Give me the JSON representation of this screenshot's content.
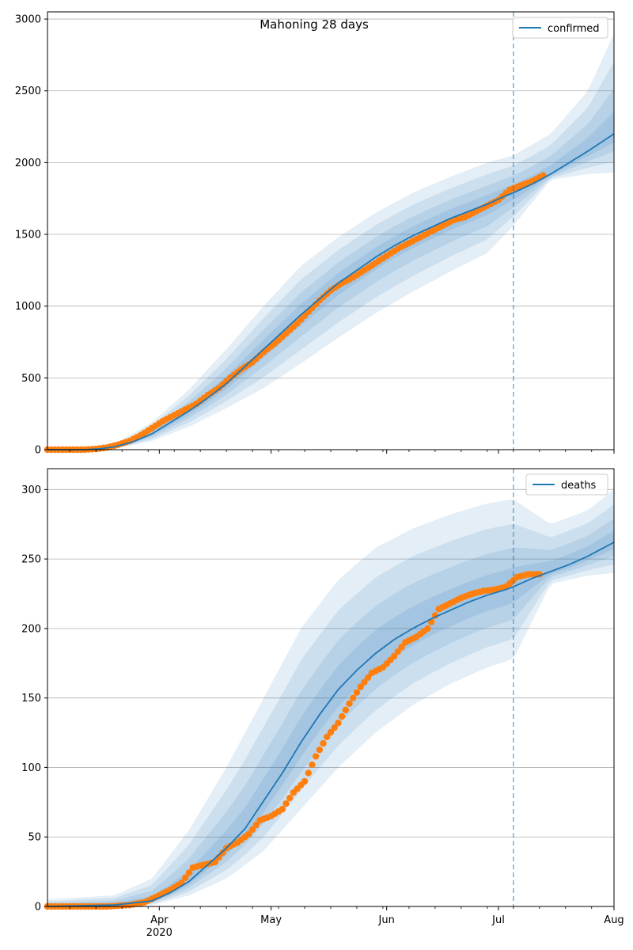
{
  "figure": {
    "title": "Mahoning 28 days"
  },
  "chart_data": [
    {
      "type": "line",
      "title": "Mahoning 28 days",
      "xlabel": "",
      "ylabel": "",
      "grid": "horizontal",
      "legend_placement": "top-right",
      "x_range": [
        "2020-03-02",
        "2020-08-01"
      ],
      "ylim": [
        0,
        3050
      ],
      "yticks": [
        0,
        500,
        1000,
        1500,
        2000,
        2500,
        3000
      ],
      "xticks": [
        {
          "date": "2020-04-01",
          "label": "Apr"
        },
        {
          "date": "2020-05-01",
          "label": "May"
        },
        {
          "date": "2020-06-01",
          "label": "Jun"
        },
        {
          "date": "2020-07-01",
          "label": "Jul"
        },
        {
          "date": "2020-08-01",
          "label": "Aug"
        }
      ],
      "year_label": "2020",
      "forecast_start": "2020-07-05",
      "series": [
        {
          "name": "confirmed",
          "kind": "model-line",
          "color": "#1f77b4",
          "points": [
            [
              "2020-03-02",
              0
            ],
            [
              "2020-03-12",
              0
            ],
            [
              "2020-03-16",
              6
            ],
            [
              "2020-03-20",
              20
            ],
            [
              "2020-03-25",
              55
            ],
            [
              "2020-03-30",
              110
            ],
            [
              "2020-04-04",
              190
            ],
            [
              "2020-04-09",
              270
            ],
            [
              "2020-04-14",
              360
            ],
            [
              "2020-04-19",
              460
            ],
            [
              "2020-04-24",
              580
            ],
            [
              "2020-04-29",
              700
            ],
            [
              "2020-05-04",
              820
            ],
            [
              "2020-05-09",
              940
            ],
            [
              "2020-05-14",
              1050
            ],
            [
              "2020-05-19",
              1160
            ],
            [
              "2020-05-24",
              1250
            ],
            [
              "2020-05-29",
              1340
            ],
            [
              "2020-06-03",
              1420
            ],
            [
              "2020-06-08",
              1490
            ],
            [
              "2020-06-13",
              1550
            ],
            [
              "2020-06-18",
              1610
            ],
            [
              "2020-06-23",
              1660
            ],
            [
              "2020-06-28",
              1710
            ],
            [
              "2020-07-03",
              1770
            ],
            [
              "2020-07-05",
              1790
            ],
            [
              "2020-07-10",
              1850
            ],
            [
              "2020-07-15",
              1920
            ],
            [
              "2020-07-20",
              2000
            ],
            [
              "2020-07-25",
              2080
            ],
            [
              "2020-08-01",
              2200
            ]
          ]
        },
        {
          "name": "confirmed (observed)",
          "kind": "observed-dots",
          "color": "#ff7f0e",
          "points": [
            [
              "2020-03-02",
              0
            ],
            [
              "2020-03-07",
              0
            ],
            [
              "2020-03-12",
              0
            ],
            [
              "2020-03-15",
              5
            ],
            [
              "2020-03-18",
              15
            ],
            [
              "2020-03-21",
              35
            ],
            [
              "2020-03-24",
              60
            ],
            [
              "2020-03-27",
              100
            ],
            [
              "2020-03-30",
              150
            ],
            [
              "2020-04-02",
              200
            ],
            [
              "2020-04-05",
              240
            ],
            [
              "2020-04-08",
              280
            ],
            [
              "2020-04-11",
              320
            ],
            [
              "2020-04-14",
              380
            ],
            [
              "2020-04-17",
              430
            ],
            [
              "2020-04-20",
              500
            ],
            [
              "2020-04-23",
              560
            ],
            [
              "2020-04-26",
              610
            ],
            [
              "2020-04-29",
              680
            ],
            [
              "2020-05-02",
              740
            ],
            [
              "2020-05-05",
              810
            ],
            [
              "2020-05-08",
              880
            ],
            [
              "2020-05-11",
              960
            ],
            [
              "2020-05-14",
              1040
            ],
            [
              "2020-05-17",
              1110
            ],
            [
              "2020-05-20",
              1160
            ],
            [
              "2020-05-23",
              1200
            ],
            [
              "2020-05-26",
              1250
            ],
            [
              "2020-05-29",
              1300
            ],
            [
              "2020-06-01",
              1350
            ],
            [
              "2020-06-04",
              1400
            ],
            [
              "2020-06-07",
              1440
            ],
            [
              "2020-06-10",
              1480
            ],
            [
              "2020-06-13",
              1520
            ],
            [
              "2020-06-16",
              1560
            ],
            [
              "2020-06-19",
              1600
            ],
            [
              "2020-06-22",
              1620
            ],
            [
              "2020-06-25",
              1660
            ],
            [
              "2020-06-28",
              1700
            ],
            [
              "2020-07-01",
              1740
            ],
            [
              "2020-07-04",
              1810
            ],
            [
              "2020-07-07",
              1840
            ],
            [
              "2020-07-10",
              1870
            ],
            [
              "2020-07-13",
              1910
            ]
          ]
        }
      ],
      "bands": {
        "color": "#1f77b4",
        "opacity": 0.12,
        "upper": [
          [
            "2020-03-02",
            0
          ],
          [
            "2020-03-12",
            0
          ],
          [
            "2020-03-20",
            40
          ],
          [
            "2020-03-30",
            190
          ],
          [
            "2020-04-09",
            420
          ],
          [
            "2020-04-19",
            700
          ],
          [
            "2020-04-29",
            1000
          ],
          [
            "2020-05-09",
            1280
          ],
          [
            "2020-05-19",
            1480
          ],
          [
            "2020-05-29",
            1650
          ],
          [
            "2020-06-08",
            1790
          ],
          [
            "2020-06-18",
            1900
          ],
          [
            "2020-06-28",
            2000
          ],
          [
            "2020-07-05",
            2050
          ],
          [
            "2020-07-15",
            2200
          ],
          [
            "2020-07-25",
            2500
          ],
          [
            "2020-08-01",
            2900
          ]
        ],
        "lower": [
          [
            "2020-03-02",
            0
          ],
          [
            "2020-03-12",
            0
          ],
          [
            "2020-03-20",
            5
          ],
          [
            "2020-03-30",
            60
          ],
          [
            "2020-04-09",
            160
          ],
          [
            "2020-04-19",
            290
          ],
          [
            "2020-04-29",
            430
          ],
          [
            "2020-05-09",
            600
          ],
          [
            "2020-05-19",
            780
          ],
          [
            "2020-05-29",
            950
          ],
          [
            "2020-06-08",
            1100
          ],
          [
            "2020-06-18",
            1240
          ],
          [
            "2020-06-28",
            1370
          ],
          [
            "2020-07-05",
            1560
          ],
          [
            "2020-07-15",
            1880
          ],
          [
            "2020-07-25",
            1920
          ],
          [
            "2020-08-01",
            1930
          ]
        ]
      },
      "legend": [
        "confirmed"
      ]
    },
    {
      "type": "line",
      "title": "",
      "xlabel": "",
      "ylabel": "",
      "grid": "horizontal",
      "legend_placement": "top-right",
      "x_range": [
        "2020-03-02",
        "2020-08-01"
      ],
      "ylim": [
        0,
        315
      ],
      "yticks": [
        0,
        50,
        100,
        150,
        200,
        250,
        300
      ],
      "xticks": [
        {
          "date": "2020-04-01",
          "label": "Apr"
        },
        {
          "date": "2020-05-01",
          "label": "May"
        },
        {
          "date": "2020-06-01",
          "label": "Jun"
        },
        {
          "date": "2020-07-01",
          "label": "Jul"
        },
        {
          "date": "2020-08-01",
          "label": "Aug"
        }
      ],
      "year_label": "2020",
      "forecast_start": "2020-07-05",
      "series": [
        {
          "name": "deaths",
          "kind": "model-line",
          "color": "#1f77b4",
          "points": [
            [
              "2020-03-02",
              0
            ],
            [
              "2020-03-20",
              1
            ],
            [
              "2020-03-30",
              4
            ],
            [
              "2020-04-04",
              10
            ],
            [
              "2020-04-09",
              18
            ],
            [
              "2020-04-14",
              30
            ],
            [
              "2020-04-19",
              42
            ],
            [
              "2020-04-24",
              56
            ],
            [
              "2020-04-29",
              76
            ],
            [
              "2020-05-04",
              96
            ],
            [
              "2020-05-09",
              118
            ],
            [
              "2020-05-14",
              138
            ],
            [
              "2020-05-19",
              156
            ],
            [
              "2020-05-24",
              170
            ],
            [
              "2020-05-29",
              182
            ],
            [
              "2020-06-03",
              192
            ],
            [
              "2020-06-08",
              200
            ],
            [
              "2020-06-13",
              207
            ],
            [
              "2020-06-18",
              213
            ],
            [
              "2020-06-23",
              219
            ],
            [
              "2020-06-28",
              224
            ],
            [
              "2020-07-03",
              228
            ],
            [
              "2020-07-05",
              230
            ],
            [
              "2020-07-10",
              236
            ],
            [
              "2020-07-15",
              241
            ],
            [
              "2020-07-20",
              246
            ],
            [
              "2020-07-25",
              252
            ],
            [
              "2020-08-01",
              262
            ]
          ]
        },
        {
          "name": "deaths (observed)",
          "kind": "observed-dots",
          "color": "#ff7f0e",
          "points": [
            [
              "2020-03-02",
              0
            ],
            [
              "2020-03-10",
              0
            ],
            [
              "2020-03-18",
              0
            ],
            [
              "2020-03-24",
              1
            ],
            [
              "2020-03-28",
              3
            ],
            [
              "2020-04-01",
              8
            ],
            [
              "2020-04-04",
              12
            ],
            [
              "2020-04-07",
              17
            ],
            [
              "2020-04-10",
              28
            ],
            [
              "2020-04-13",
              30
            ],
            [
              "2020-04-16",
              32
            ],
            [
              "2020-04-19",
              42
            ],
            [
              "2020-04-22",
              46
            ],
            [
              "2020-04-25",
              52
            ],
            [
              "2020-04-28",
              62
            ],
            [
              "2020-05-01",
              65
            ],
            [
              "2020-05-04",
              70
            ],
            [
              "2020-05-07",
              82
            ],
            [
              "2020-05-10",
              90
            ],
            [
              "2020-05-13",
              108
            ],
            [
              "2020-05-16",
              122
            ],
            [
              "2020-05-19",
              132
            ],
            [
              "2020-05-22",
              146
            ],
            [
              "2020-05-25",
              158
            ],
            [
              "2020-05-28",
              168
            ],
            [
              "2020-05-31",
              172
            ],
            [
              "2020-06-03",
              180
            ],
            [
              "2020-06-06",
              190
            ],
            [
              "2020-06-09",
              194
            ],
            [
              "2020-06-12",
              200
            ],
            [
              "2020-06-15",
              214
            ],
            [
              "2020-06-18",
              218
            ],
            [
              "2020-06-21",
              222
            ],
            [
              "2020-06-24",
              225
            ],
            [
              "2020-06-27",
              227
            ],
            [
              "2020-06-30",
              228
            ],
            [
              "2020-07-03",
              230
            ],
            [
              "2020-07-06",
              237
            ],
            [
              "2020-07-09",
              239
            ],
            [
              "2020-07-12",
              239
            ]
          ]
        }
      ],
      "bands": {
        "color": "#1f77b4",
        "opacity": 0.12,
        "upper": [
          [
            "2020-03-02",
            5
          ],
          [
            "2020-03-20",
            8
          ],
          [
            "2020-03-30",
            20
          ],
          [
            "2020-04-09",
            55
          ],
          [
            "2020-04-19",
            100
          ],
          [
            "2020-04-29",
            150
          ],
          [
            "2020-05-09",
            200
          ],
          [
            "2020-05-19",
            235
          ],
          [
            "2020-05-29",
            258
          ],
          [
            "2020-06-08",
            272
          ],
          [
            "2020-06-18",
            282
          ],
          [
            "2020-06-28",
            290
          ],
          [
            "2020-07-05",
            293
          ],
          [
            "2020-07-15",
            275
          ],
          [
            "2020-07-25",
            285
          ],
          [
            "2020-08-01",
            300
          ]
        ],
        "lower": [
          [
            "2020-03-02",
            0
          ],
          [
            "2020-03-20",
            0
          ],
          [
            "2020-03-30",
            1
          ],
          [
            "2020-04-09",
            8
          ],
          [
            "2020-04-19",
            20
          ],
          [
            "2020-04-29",
            40
          ],
          [
            "2020-05-09",
            70
          ],
          [
            "2020-05-19",
            100
          ],
          [
            "2020-05-29",
            125
          ],
          [
            "2020-06-08",
            145
          ],
          [
            "2020-06-18",
            160
          ],
          [
            "2020-06-28",
            172
          ],
          [
            "2020-07-05",
            178
          ],
          [
            "2020-07-15",
            232
          ],
          [
            "2020-07-25",
            238
          ],
          [
            "2020-08-01",
            240
          ]
        ]
      },
      "legend": [
        "deaths"
      ]
    }
  ]
}
